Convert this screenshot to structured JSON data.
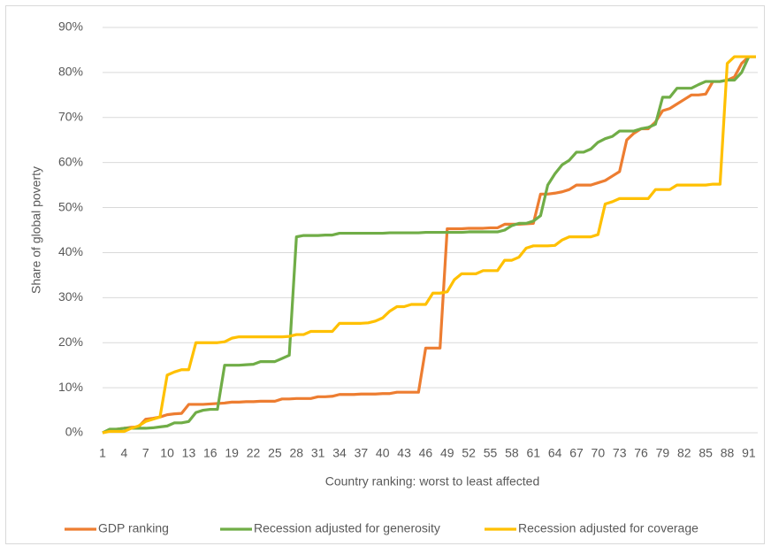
{
  "chart_data": {
    "type": "line",
    "x_label": "Country ranking: worst to least affected",
    "y_label": "Share of global poverty",
    "x": [
      1,
      2,
      3,
      4,
      5,
      6,
      7,
      8,
      9,
      10,
      11,
      12,
      13,
      14,
      15,
      16,
      17,
      18,
      19,
      20,
      21,
      22,
      23,
      24,
      25,
      26,
      27,
      28,
      29,
      30,
      31,
      32,
      33,
      34,
      35,
      36,
      37,
      38,
      39,
      40,
      41,
      42,
      43,
      44,
      45,
      46,
      47,
      48,
      49,
      50,
      51,
      52,
      53,
      54,
      55,
      56,
      57,
      58,
      59,
      60,
      61,
      62,
      63,
      64,
      65,
      66,
      67,
      68,
      69,
      70,
      71,
      72,
      73,
      74,
      75,
      76,
      77,
      78,
      79,
      80,
      81,
      82,
      83,
      84,
      85,
      86,
      87,
      88,
      89,
      90,
      91,
      92
    ],
    "xlim": [
      1,
      92
    ],
    "xticks": [
      1,
      4,
      7,
      10,
      13,
      16,
      19,
      22,
      25,
      28,
      31,
      34,
      37,
      40,
      43,
      46,
      49,
      52,
      55,
      58,
      61,
      64,
      67,
      70,
      73,
      76,
      79,
      82,
      85,
      88,
      91
    ],
    "ylim": [
      0,
      90
    ],
    "yticks": [
      {
        "value": 0,
        "label": "0%"
      },
      {
        "value": 10,
        "label": "10%"
      },
      {
        "value": 20,
        "label": "20%"
      },
      {
        "value": 30,
        "label": "30%"
      },
      {
        "value": 40,
        "label": "40%"
      },
      {
        "value": 50,
        "label": "50%"
      },
      {
        "value": 60,
        "label": "60%"
      },
      {
        "value": 70,
        "label": "70%"
      },
      {
        "value": 80,
        "label": "80%"
      },
      {
        "value": 90,
        "label": "90%"
      }
    ],
    "grid": true,
    "legend": "bottom",
    "series": [
      {
        "name": "GDP ranking",
        "color": "#ED7D31",
        "values": [
          0,
          0.5,
          0.8,
          1,
          1.2,
          1.3,
          3,
          3.2,
          3.5,
          4,
          4.2,
          4.3,
          6.3,
          6.3,
          6.3,
          6.4,
          6.5,
          6.6,
          6.8,
          6.8,
          6.9,
          6.9,
          7,
          7,
          7,
          7.5,
          7.5,
          7.6,
          7.6,
          7.6,
          8,
          8,
          8.1,
          8.5,
          8.5,
          8.5,
          8.6,
          8.6,
          8.6,
          8.7,
          8.7,
          9,
          9,
          9,
          9,
          18.8,
          18.8,
          18.8,
          45.3,
          45.3,
          45.3,
          45.4,
          45.4,
          45.4,
          45.5,
          45.5,
          46.3,
          46.3,
          46.3,
          46.4,
          46.5,
          53,
          53,
          53.2,
          53.5,
          54,
          55,
          55,
          55,
          55.5,
          56,
          57,
          58,
          65,
          66.5,
          67.5,
          67.5,
          69,
          71.5,
          72,
          73,
          74,
          75,
          75,
          75.2,
          78,
          78,
          78.3,
          79,
          82,
          83.5,
          83.5
        ]
      },
      {
        "name": "Recession adjusted for generosity",
        "color": "#70AD47",
        "values": [
          0,
          0.8,
          0.8,
          1,
          1,
          1,
          1,
          1.1,
          1.3,
          1.5,
          2.2,
          2.2,
          2.5,
          4.5,
          5,
          5.2,
          5.2,
          15,
          15,
          15,
          15.1,
          15.2,
          15.8,
          15.8,
          15.8,
          16.5,
          17.2,
          43.5,
          43.8,
          43.8,
          43.8,
          43.9,
          43.9,
          44.3,
          44.3,
          44.3,
          44.3,
          44.3,
          44.3,
          44.3,
          44.4,
          44.4,
          44.4,
          44.4,
          44.4,
          44.5,
          44.5,
          44.5,
          44.5,
          44.5,
          44.5,
          44.6,
          44.6,
          44.6,
          44.6,
          44.6,
          45,
          46,
          46.5,
          46.5,
          47,
          48.2,
          55,
          57.5,
          59.5,
          60.5,
          62.3,
          62.3,
          63,
          64.5,
          65.3,
          65.8,
          67,
          67,
          67,
          67.5,
          67.8,
          68.5,
          74.5,
          74.5,
          76.5,
          76.5,
          76.5,
          77.3,
          78,
          78,
          78,
          78.3,
          78.3,
          80,
          83.5,
          83.5
        ]
      },
      {
        "name": "Recession adjusted for coverage",
        "color": "#FFC000",
        "values": [
          0,
          0.3,
          0.3,
          0.3,
          1,
          1.5,
          2.5,
          3,
          3.5,
          12.8,
          13.5,
          14,
          14,
          20,
          20,
          20,
          20,
          20.2,
          21,
          21.3,
          21.3,
          21.3,
          21.3,
          21.3,
          21.3,
          21.3,
          21.4,
          21.8,
          21.8,
          22.5,
          22.5,
          22.5,
          22.5,
          24.3,
          24.3,
          24.3,
          24.3,
          24.4,
          24.8,
          25.5,
          27,
          28,
          28,
          28.5,
          28.5,
          28.5,
          31,
          31,
          31.3,
          34,
          35.3,
          35.3,
          35.3,
          36,
          36,
          36,
          38.3,
          38.3,
          39,
          41,
          41.5,
          41.5,
          41.5,
          41.6,
          42.8,
          43.5,
          43.5,
          43.5,
          43.5,
          44,
          50.8,
          51.3,
          52,
          52,
          52,
          52,
          52,
          54,
          54,
          54,
          55,
          55,
          55,
          55,
          55,
          55.2,
          55.2,
          82,
          83.5,
          83.5,
          83.5,
          83.5
        ]
      }
    ]
  }
}
